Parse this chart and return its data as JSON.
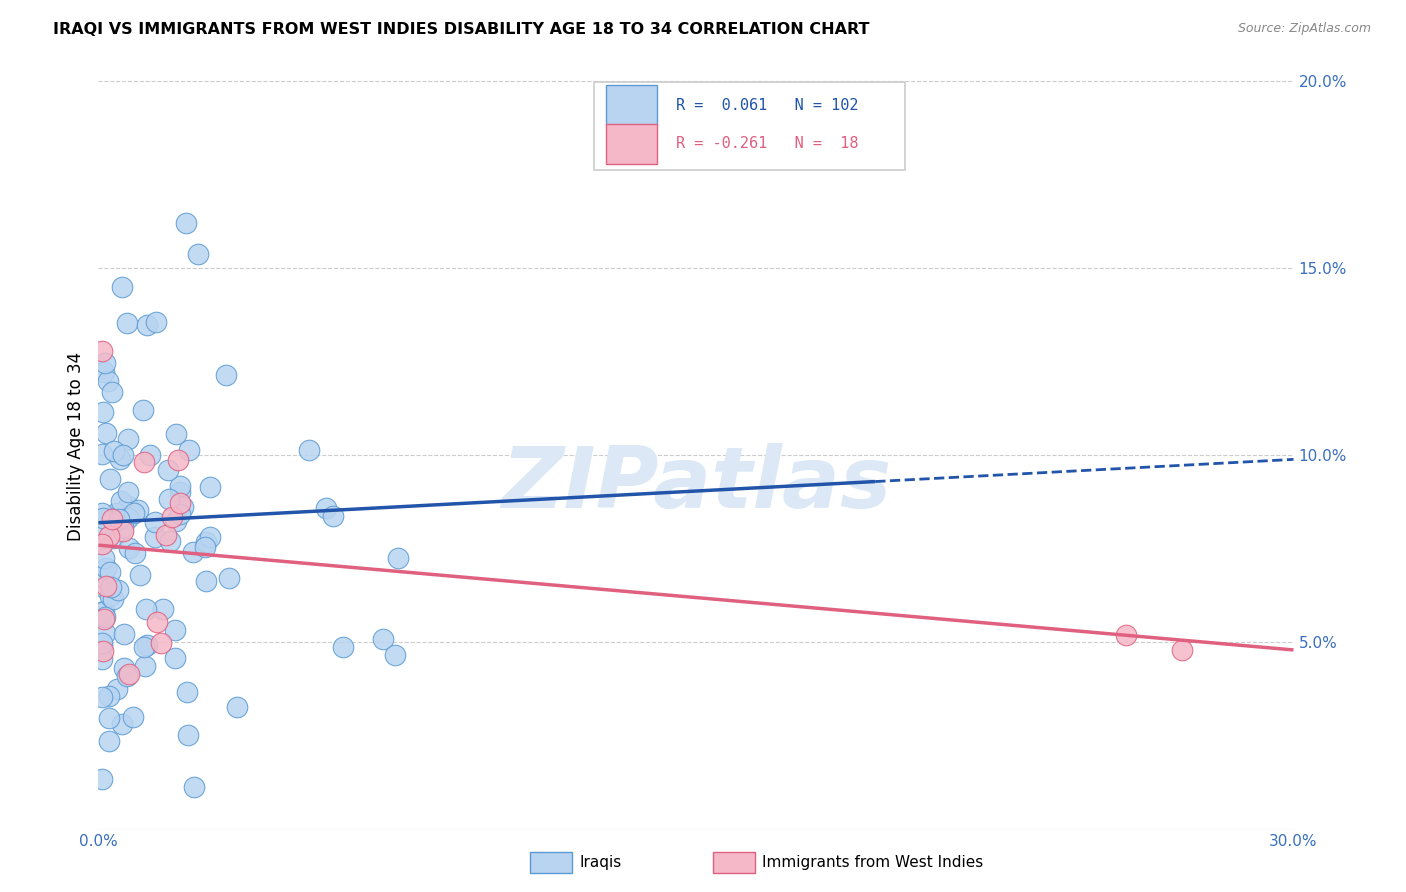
{
  "title": "IRAQI VS IMMIGRANTS FROM WEST INDIES DISABILITY AGE 18 TO 34 CORRELATION CHART",
  "source": "Source: ZipAtlas.com",
  "ylabel": "Disability Age 18 to 34",
  "xlim": [
    0.0,
    0.3
  ],
  "ylim": [
    0.0,
    0.205
  ],
  "iraqi_color": "#b8d4f0",
  "iraqi_edge_color": "#5b9bd5",
  "westindies_color": "#f5b8c8",
  "westindies_edge_color": "#e06080",
  "trend_iraqi_color": "#2255aa",
  "trend_westindies_color": "#e06080",
  "watermark_color": "#dce8f5",
  "background_color": "#ffffff",
  "grid_color": "#cccccc",
  "iraqi_R": 0.061,
  "iraqi_N": 102,
  "westindies_R": -0.261,
  "westindies_N": 18,
  "trend_iraqi_y0": 0.082,
  "trend_iraqi_y1": 0.093,
  "trend_iraqi_solid_end": 0.195,
  "trend_wi_y0": 0.076,
  "trend_wi_y1": 0.048
}
